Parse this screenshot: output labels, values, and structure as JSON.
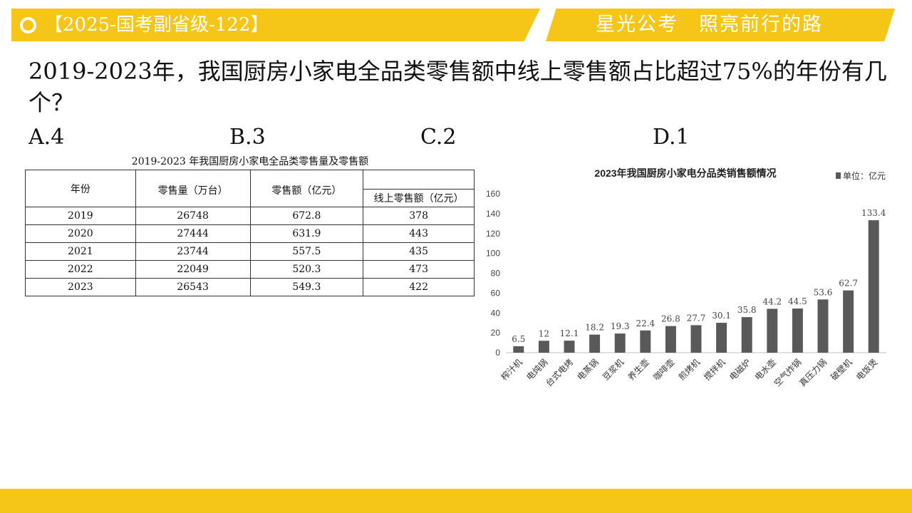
{
  "header": {
    "tag": "【2025-国考副省级-122】",
    "slogan": "星光公考　照亮前行的路"
  },
  "question": {
    "text": "2019-2023年，我国厨房小家电全品类零售额中线上零售额占比超过75%的年份有几个？",
    "options": [
      "A.4",
      "B.3",
      "C.2",
      "D.1"
    ]
  },
  "table": {
    "title": "2019-2023 年我国厨房小家电全品类零售量及零售额",
    "headers": [
      "年份",
      "零售量（万台）",
      "零售额（亿元）",
      "线上零售额（亿元）"
    ],
    "rows": [
      [
        "2019",
        "26748",
        "672.8",
        "378"
      ],
      [
        "2020",
        "27444",
        "631.9",
        "443"
      ],
      [
        "2021",
        "23744",
        "557.5",
        "435"
      ],
      [
        "2022",
        "22049",
        "520.3",
        "473"
      ],
      [
        "2023",
        "26543",
        "549.3",
        "422"
      ]
    ]
  },
  "chart_data": {
    "type": "bar",
    "title": "2023年我国厨房小家电分品类销售额情况",
    "legend": "单位：亿元",
    "categories": [
      "榨汁机",
      "电炖锅",
      "台式电烤",
      "电蒸锅",
      "豆浆机",
      "养生壶",
      "咖啡壶",
      "煎烤机",
      "搅拌机",
      "电磁炉",
      "电水壶",
      "空气炸锅",
      "真压力锅",
      "破壁机",
      "电饭煲"
    ],
    "values": [
      6.5,
      12,
      12.1,
      18.2,
      19.3,
      22.4,
      26.8,
      27.7,
      30.1,
      35.8,
      44.2,
      44.5,
      53.6,
      62.7,
      133.4
    ],
    "value_labels": [
      "6.5",
      "12",
      "12.1",
      "18.2",
      "19.3",
      "22.4",
      "26.8",
      "27.7",
      "30.1",
      "35.8",
      "44.2",
      "44.5",
      "53.6",
      "62.7",
      "133.4"
    ],
    "ylim": [
      0,
      160
    ],
    "yticks": [
      0,
      20,
      40,
      60,
      80,
      100,
      120,
      140,
      160
    ],
    "bar_color": "#595959",
    "grid": false,
    "legend_position": "top-right"
  },
  "colors": {
    "accent": "#f5c518"
  }
}
